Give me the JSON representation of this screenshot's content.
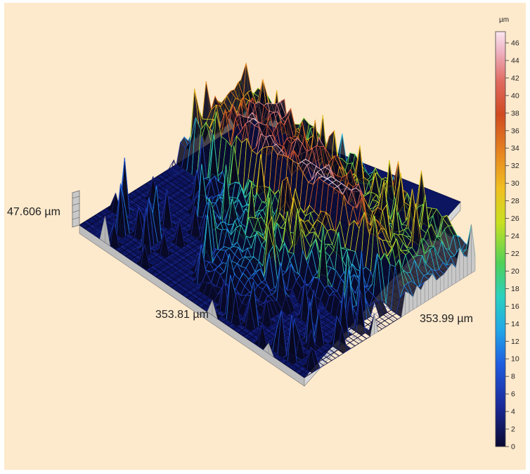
{
  "chart_data": {
    "type": "heatmap",
    "view": "3d-surface",
    "title": "",
    "z_label": "47.606 µm",
    "x_label": "353.81 µm",
    "y_label": "353.99 µm",
    "colorbar": {
      "unit": "µm",
      "range": [
        0,
        46
      ],
      "ticks": [
        "0",
        "2",
        "4",
        "6",
        "8",
        "10",
        "12",
        "14",
        "16",
        "18",
        "20",
        "22",
        "24",
        "26",
        "28",
        "30",
        "32",
        "34",
        "36",
        "38",
        "40",
        "42",
        "44",
        "46"
      ],
      "colors": [
        "#0a0a30",
        "#1c2a9a",
        "#1f5de0",
        "#22a6e8",
        "#2ad0c0",
        "#4ed05a",
        "#c8e020",
        "#f0c020",
        "#e88a20",
        "#d04a20",
        "#e06a60",
        "#eeb0c0",
        "#fbe6f0"
      ]
    }
  }
}
